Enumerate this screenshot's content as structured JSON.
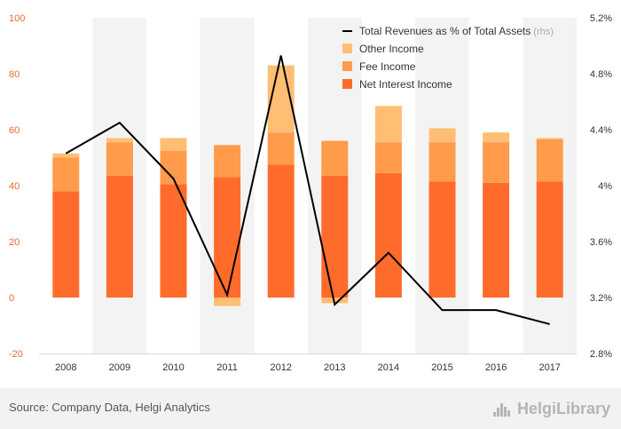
{
  "chart_data": {
    "type": "bar",
    "stacked": true,
    "categories": [
      "2008",
      "2009",
      "2010",
      "2011",
      "2012",
      "2013",
      "2014",
      "2015",
      "2016",
      "2017"
    ],
    "series": [
      {
        "name": "Net Interest Income",
        "type": "bar",
        "axis": "left",
        "color": "#ff6b2b",
        "values": [
          38,
          43.5,
          40.5,
          43,
          47.5,
          43.5,
          44.5,
          41.5,
          41,
          41.5
        ]
      },
      {
        "name": "Fee Income",
        "type": "bar",
        "axis": "left",
        "color": "#ff9b4a",
        "values": [
          12,
          12,
          12,
          11.5,
          11.5,
          12.5,
          11,
          14,
          14.5,
          15
        ]
      },
      {
        "name": "Other Income",
        "type": "bar",
        "axis": "left",
        "color": "#ffbe73",
        "values": [
          1.5,
          1.5,
          4.5,
          -3,
          24,
          -2,
          13,
          5,
          3.5,
          0.5
        ]
      },
      {
        "name": "Total Revenues as % of Total Assets",
        "suffix": "(rhs)",
        "type": "line",
        "axis": "right",
        "color": "#000000",
        "values": [
          4.23,
          4.45,
          4.05,
          3.22,
          4.93,
          3.15,
          3.52,
          3.11,
          3.11,
          3.01
        ]
      }
    ],
    "y_left": {
      "min": -20,
      "max": 100,
      "ticks": [
        -20,
        0,
        20,
        40,
        60,
        80,
        100
      ]
    },
    "y_right": {
      "min": 2.8,
      "max": 5.2,
      "ticks": [
        2.8,
        3.2,
        3.6,
        4.0,
        4.4,
        4.8,
        5.2
      ],
      "tick_labels": [
        "2.8%",
        "3.2%",
        "3.6%",
        "4%",
        "4.4%",
        "4.8%",
        "5.2%"
      ]
    },
    "legend_position": "top-right",
    "grid": "vertical-bands"
  },
  "footer": {
    "source": "Source: Company Data, Helgi Analytics",
    "brand": "HelgiLibrary"
  }
}
